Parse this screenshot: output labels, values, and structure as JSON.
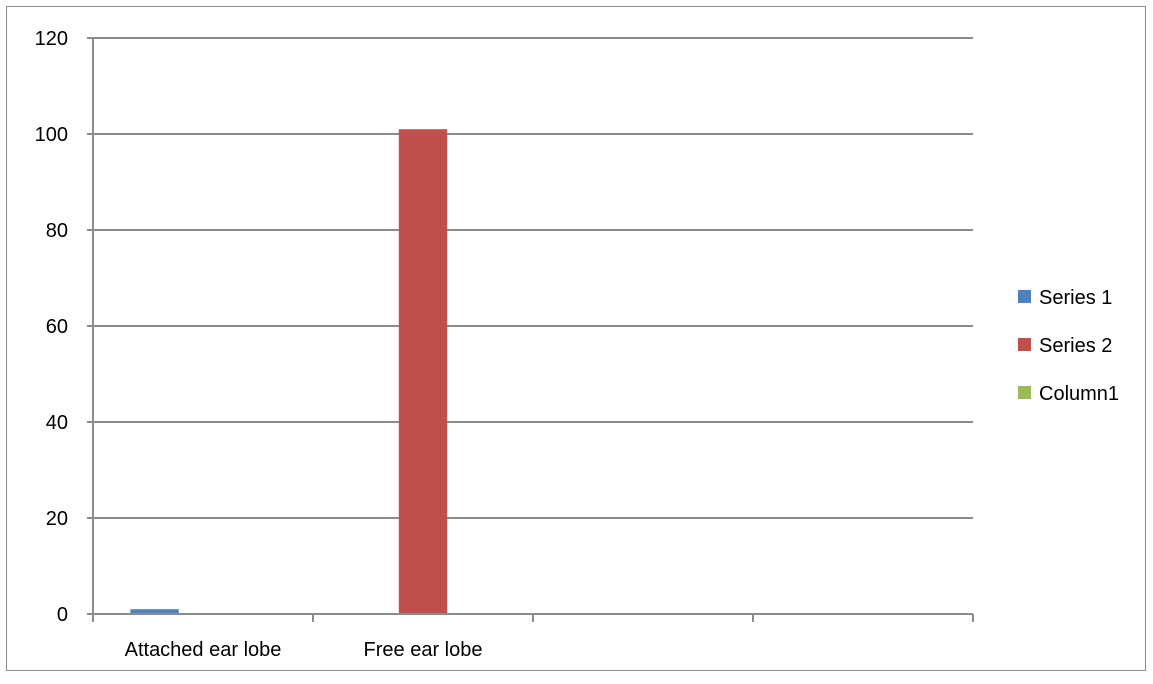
{
  "chart_data": {
    "type": "bar",
    "categories": [
      "Attached ear lobe",
      "Free ear lobe",
      "",
      ""
    ],
    "series": [
      {
        "name": "Series 1",
        "color": "#4f81bd",
        "values": [
          1,
          0,
          0,
          0
        ]
      },
      {
        "name": "Series 2",
        "color": "#c0504d",
        "values": [
          0,
          101,
          0,
          0
        ]
      },
      {
        "name": "Column1",
        "color": "#9bbb59",
        "values": [
          0,
          0,
          0,
          0
        ]
      }
    ],
    "title": "",
    "xlabel": "",
    "ylabel": "",
    "ylim": [
      0,
      120
    ],
    "yticks": [
      0,
      20,
      40,
      60,
      80,
      100,
      120
    ],
    "grid": true,
    "legend": "right"
  }
}
